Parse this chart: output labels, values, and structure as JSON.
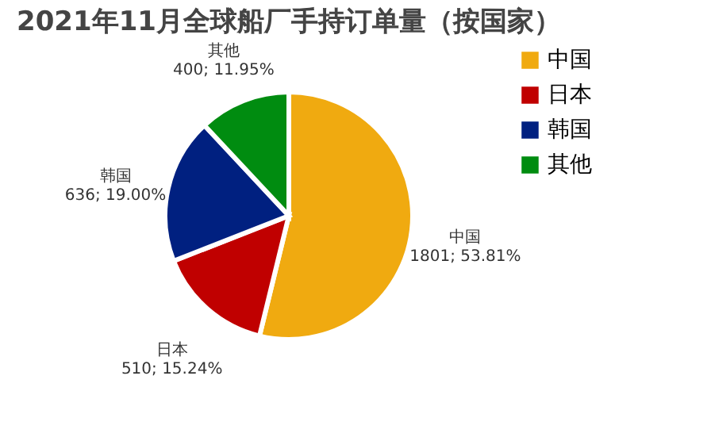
{
  "chart_data": {
    "type": "pie",
    "title": "2021年11月全球船厂手持订单量（按国家）",
    "categories": [
      "中国",
      "日本",
      "韩国",
      "其他"
    ],
    "values": [
      1801,
      510,
      636,
      400
    ],
    "colors": [
      "#f0aa10",
      "#c00000",
      "#002080",
      "#008c10"
    ],
    "value_labels": [
      "1801; 53.81%",
      "510; 15.24%",
      "636; 19.00%",
      "400; 11.95%"
    ],
    "legend": "right"
  }
}
